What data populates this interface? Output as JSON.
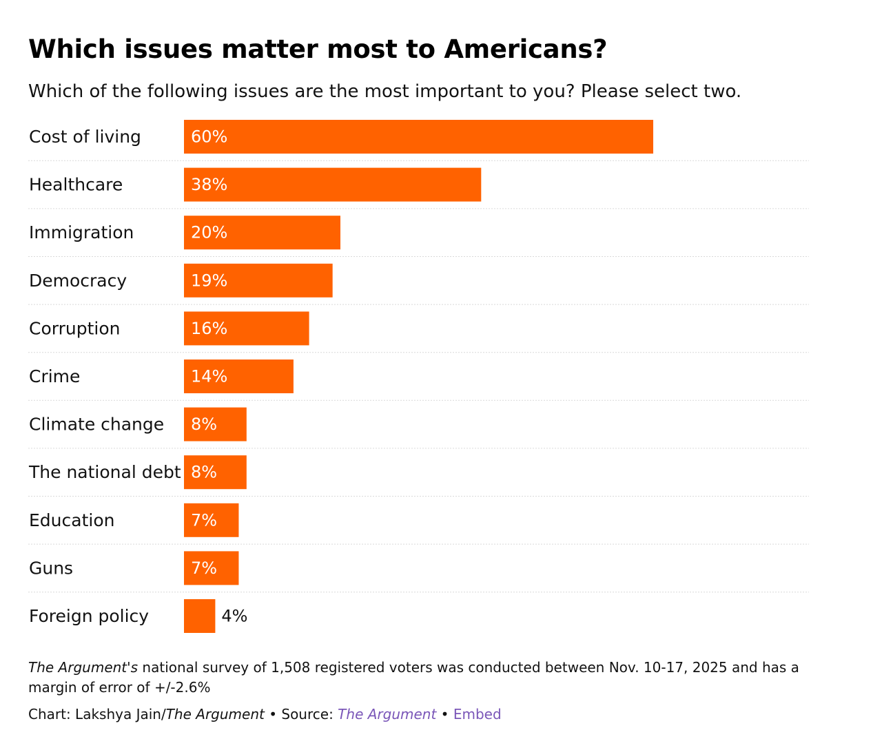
{
  "chart_data": {
    "type": "bar",
    "orientation": "horizontal",
    "title": "Which issues matter most to Americans?",
    "subtitle": "Which of the following issues are the most important to you? Please select two.",
    "categories": [
      "Cost of living",
      "Healthcare",
      "Immigration",
      "Democracy",
      "Corruption",
      "Crime",
      "Climate change",
      "The national debt",
      "Education",
      "Guns",
      "Foreign policy"
    ],
    "values": [
      60,
      38,
      20,
      19,
      16,
      14,
      8,
      8,
      7,
      7,
      4
    ],
    "value_labels": [
      "60%",
      "38%",
      "20%",
      "19%",
      "16%",
      "14%",
      "8%",
      "8%",
      "7%",
      "7%",
      "4%"
    ],
    "xlim": [
      0,
      100
    ],
    "bar_color": "#ff6200",
    "grid": false
  },
  "notes": {
    "source_name": "The Argument's",
    "text": "national survey of 1,508 registered voters was conducted between Nov. 10-17, 2025 and has a margin of error of +/-2.6%"
  },
  "credits": {
    "chart_prefix": "Chart: Lakshya Jain/",
    "chart_outlet": "The Argument",
    "separator": "•",
    "source_prefix": "Source:",
    "source_link": "The Argument",
    "embed_label": "Embed"
  },
  "colors": {
    "bar": "#ff6200",
    "text": "#121212",
    "link": "#7a56b8",
    "divider": "#d9d9d9"
  }
}
